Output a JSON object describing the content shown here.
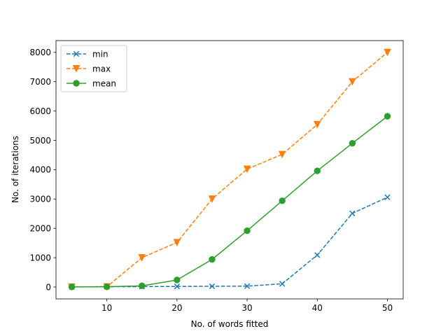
{
  "chart_data": {
    "type": "line",
    "xlabel": "No. of words fitted",
    "ylabel": "No. of iterations",
    "xlim": [
      2.75,
      52.25
    ],
    "ylim": [
      -405,
      8400
    ],
    "x_ticks": [
      10,
      20,
      30,
      40,
      50
    ],
    "y_ticks": [
      0,
      1000,
      2000,
      3000,
      4000,
      5000,
      6000,
      7000,
      8000
    ],
    "grid": false,
    "legend_position": "upper-left",
    "x": [
      5,
      10,
      15,
      20,
      25,
      30,
      35,
      40,
      45,
      50
    ],
    "series": [
      {
        "name": "min",
        "color": "#1f77b4",
        "line_style": "dashed",
        "marker": "x",
        "values": [
          5,
          10,
          15,
          20,
          25,
          30,
          110,
          1090,
          2510,
          3060
        ]
      },
      {
        "name": "max",
        "color": "#ff7f0e",
        "line_style": "dashed",
        "marker": "triangle-down",
        "values": [
          5,
          10,
          1000,
          1520,
          3000,
          4020,
          4520,
          5540,
          7000,
          8000
        ]
      },
      {
        "name": "mean",
        "color": "#2ca02c",
        "line_style": "solid",
        "marker": "circle",
        "values": [
          5,
          10,
          40,
          240,
          940,
          1920,
          2940,
          3960,
          4900,
          5820
        ]
      }
    ]
  }
}
